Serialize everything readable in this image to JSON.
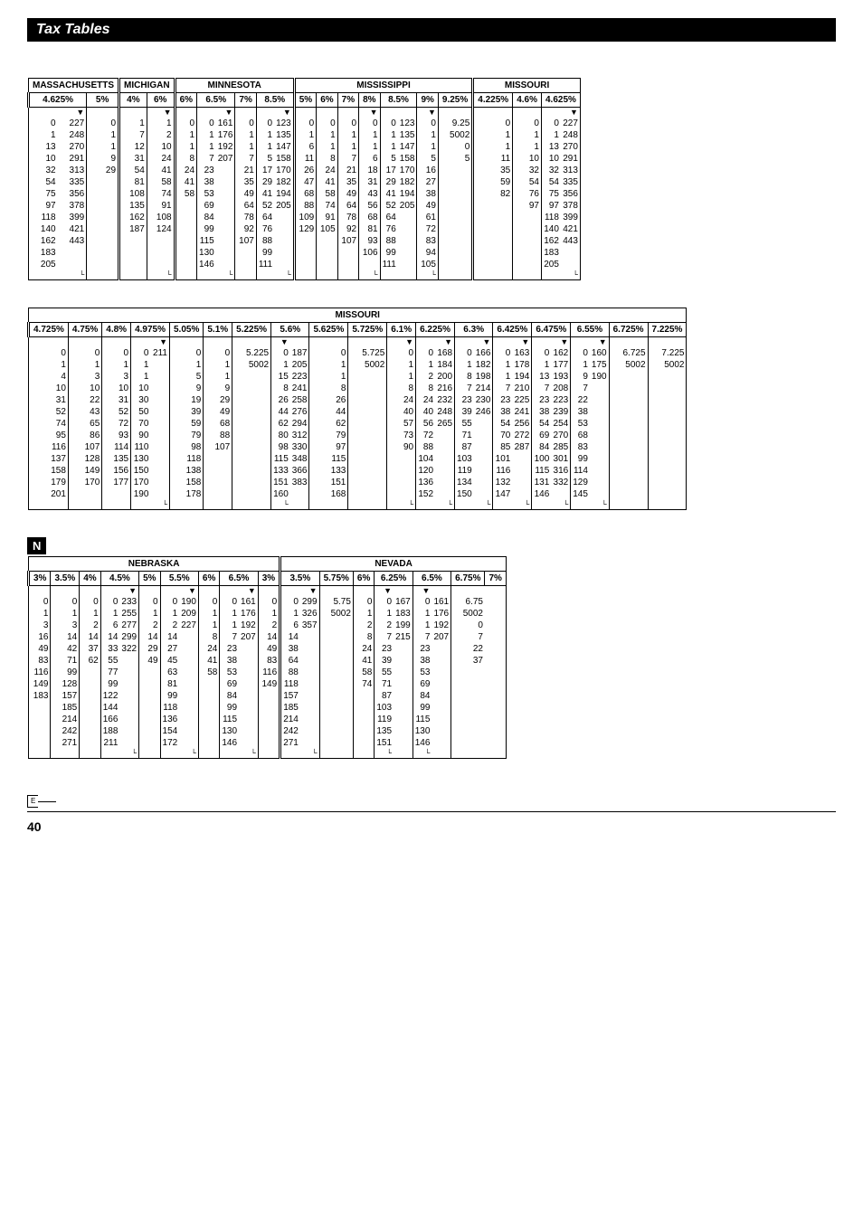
{
  "page_title": "Tax Tables",
  "page_number": "40",
  "e_label": "E",
  "n_label": "N",
  "table1": {
    "states": [
      "MASSACHUSETTS",
      "MICHIGAN",
      "MINNESOTA",
      "MISSISSIPPI",
      "MISSOURI"
    ],
    "state_spans": [
      3,
      2,
      6,
      8,
      4
    ],
    "rates": [
      "4.625%",
      "5%",
      "4%",
      "6%",
      "6%",
      "6.5%",
      "7%",
      "8.5%",
      "5%",
      "6%",
      "7%",
      "8%",
      "8.5%",
      "9%",
      "9.25%",
      "4.225%",
      "4.6%",
      "4.625%"
    ],
    "rate_spans": [
      2,
      1,
      1,
      1,
      1,
      2,
      1,
      2,
      1,
      1,
      1,
      1,
      2,
      1,
      1,
      1,
      1,
      2
    ],
    "cols": 23,
    "arrow_cols": [
      1,
      4,
      7,
      10,
      14,
      17,
      22
    ],
    "rows": [
      [
        "0",
        "227",
        "0",
        "1",
        "1",
        "0",
        "0",
        "161",
        "0",
        "0",
        "123",
        "0",
        "0",
        "0",
        "0",
        "0",
        "123",
        "0",
        "9.25",
        "0",
        "0",
        "0",
        "227"
      ],
      [
        "1",
        "248",
        "1",
        "7",
        "2",
        "1",
        "1",
        "176",
        "1",
        "1",
        "135",
        "1",
        "1",
        "1",
        "1",
        "1",
        "135",
        "1",
        "5002",
        "1",
        "1",
        "1",
        "248"
      ],
      [
        "13",
        "270",
        "1",
        "12",
        "10",
        "1",
        "1",
        "192",
        "1",
        "1",
        "147",
        "6",
        "1",
        "1",
        "1",
        "1",
        "147",
        "1",
        "0",
        "1",
        "1",
        "13",
        "270"
      ],
      [
        "10",
        "291",
        "9",
        "31",
        "24",
        "8",
        "7",
        "207",
        "7",
        "5",
        "158",
        "11",
        "8",
        "7",
        "6",
        "5",
        "158",
        "5",
        "5",
        "11",
        "10",
        "10",
        "291"
      ],
      [
        "32",
        "313",
        "29",
        "54",
        "41",
        "24",
        "23",
        "",
        "21",
        "17",
        "170",
        "26",
        "24",
        "21",
        "18",
        "17",
        "170",
        "16",
        "",
        "35",
        "32",
        "32",
        "313"
      ],
      [
        "54",
        "335",
        "",
        "81",
        "58",
        "41",
        "38",
        "",
        "35",
        "29",
        "182",
        "47",
        "41",
        "35",
        "31",
        "29",
        "182",
        "27",
        "",
        "59",
        "54",
        "54",
        "335"
      ],
      [
        "75",
        "356",
        "",
        "108",
        "74",
        "58",
        "53",
        "",
        "49",
        "41",
        "194",
        "68",
        "58",
        "49",
        "43",
        "41",
        "194",
        "38",
        "",
        "82",
        "76",
        "75",
        "356"
      ],
      [
        "97",
        "378",
        "",
        "135",
        "91",
        "",
        "69",
        "",
        "64",
        "52",
        "205",
        "88",
        "74",
        "64",
        "56",
        "52",
        "205",
        "49",
        "",
        "",
        "97",
        "97",
        "378"
      ],
      [
        "118",
        "399",
        "",
        "162",
        "108",
        "",
        "84",
        "",
        "78",
        "64",
        "",
        "109",
        "91",
        "78",
        "68",
        "64",
        "",
        "61",
        "",
        "",
        "",
        "118",
        "399"
      ],
      [
        "140",
        "421",
        "",
        "187",
        "124",
        "",
        "99",
        "",
        "92",
        "76",
        "",
        "129",
        "105",
        "92",
        "81",
        "76",
        "",
        "72",
        "",
        "",
        "",
        "140",
        "421"
      ],
      [
        "162",
        "443",
        "",
        "",
        "",
        "",
        "115",
        "",
        "107",
        "88",
        "",
        "",
        "",
        "107",
        "93",
        "88",
        "",
        "83",
        "",
        "",
        "",
        "162",
        "443"
      ],
      [
        "183",
        "",
        "",
        "",
        "",
        "",
        "130",
        "",
        "",
        "99",
        "",
        "",
        "",
        "",
        "106",
        "99",
        "",
        "94",
        "",
        "",
        "",
        "183",
        ""
      ],
      [
        "205",
        "",
        "",
        "",
        "",
        "",
        "146",
        "",
        "",
        "111",
        "",
        "",
        "",
        "",
        "",
        "111",
        "",
        "105",
        "",
        "",
        "",
        "205",
        ""
      ]
    ]
  },
  "table2": {
    "states": [
      "MISSOURI"
    ],
    "state_spans": [
      27
    ],
    "rates": [
      "4.725%",
      "4.75%",
      "4.8%",
      "4.975%",
      "5.05%",
      "5.1%",
      "5.225%",
      "5.6%",
      "5.625%",
      "5.725%",
      "6.1%",
      "6.225%",
      "6.3%",
      "6.425%",
      "6.475%",
      "6.55%",
      "6.725%",
      "7.225%"
    ],
    "rate_spans": [
      1,
      1,
      1,
      2,
      1,
      1,
      1,
      2,
      1,
      1,
      1,
      2,
      2,
      2,
      2,
      2,
      1,
      1
    ],
    "cols": 25,
    "arrow_cols": [
      4,
      8,
      12,
      14,
      16,
      18,
      20,
      22
    ],
    "rows": [
      [
        "0",
        "0",
        "0",
        "0",
        "211",
        "0",
        "0",
        "5.225",
        "0",
        "187",
        "0",
        "5.725",
        "0",
        "0",
        "168",
        "0",
        "166",
        "0",
        "163",
        "0",
        "162",
        "0",
        "160",
        "6.725",
        "7.225"
      ],
      [
        "1",
        "1",
        "1",
        "1",
        "",
        "1",
        "1",
        "5002",
        "1",
        "205",
        "1",
        "5002",
        "1",
        "1",
        "184",
        "1",
        "182",
        "1",
        "178",
        "1",
        "177",
        "1",
        "175",
        "5002",
        "5002"
      ],
      [
        "4",
        "3",
        "3",
        "1",
        "",
        "5",
        "1",
        "",
        "15",
        "223",
        "1",
        "",
        "1",
        "2",
        "200",
        "8",
        "198",
        "1",
        "194",
        "13",
        "193",
        "9",
        "190",
        "",
        ""
      ],
      [
        "10",
        "10",
        "10",
        "10",
        "",
        "9",
        "9",
        "",
        "8",
        "241",
        "8",
        "",
        "8",
        "8",
        "216",
        "7",
        "214",
        "7",
        "210",
        "7",
        "208",
        "7",
        "",
        "",
        ""
      ],
      [
        "31",
        "22",
        "31",
        "30",
        "",
        "19",
        "29",
        "",
        "26",
        "258",
        "26",
        "",
        "24",
        "24",
        "232",
        "23",
        "230",
        "23",
        "225",
        "23",
        "223",
        "22",
        "",
        "",
        ""
      ],
      [
        "52",
        "43",
        "52",
        "50",
        "",
        "39",
        "49",
        "",
        "44",
        "276",
        "44",
        "",
        "40",
        "40",
        "248",
        "39",
        "246",
        "38",
        "241",
        "38",
        "239",
        "38",
        "",
        "",
        ""
      ],
      [
        "74",
        "65",
        "72",
        "70",
        "",
        "59",
        "68",
        "",
        "62",
        "294",
        "62",
        "",
        "57",
        "56",
        "265",
        "55",
        "",
        "54",
        "256",
        "54",
        "254",
        "53",
        "",
        "",
        ""
      ],
      [
        "95",
        "86",
        "93",
        "90",
        "",
        "79",
        "88",
        "",
        "80",
        "312",
        "79",
        "",
        "73",
        "72",
        "",
        "71",
        "",
        "70",
        "272",
        "69",
        "270",
        "68",
        "",
        "",
        ""
      ],
      [
        "116",
        "107",
        "114",
        "110",
        "",
        "98",
        "107",
        "",
        "98",
        "330",
        "97",
        "",
        "90",
        "88",
        "",
        "87",
        "",
        "85",
        "287",
        "84",
        "285",
        "83",
        "",
        "",
        ""
      ],
      [
        "137",
        "128",
        "135",
        "130",
        "",
        "118",
        "",
        "",
        "115",
        "348",
        "115",
        "",
        "",
        "104",
        "",
        "103",
        "",
        "101",
        "",
        "100",
        "301",
        "99",
        "",
        "",
        ""
      ],
      [
        "158",
        "149",
        "156",
        "150",
        "",
        "138",
        "",
        "",
        "133",
        "366",
        "133",
        "",
        "",
        "120",
        "",
        "119",
        "",
        "116",
        "",
        "115",
        "316",
        "114",
        "",
        "",
        ""
      ],
      [
        "179",
        "170",
        "177",
        "170",
        "",
        "158",
        "",
        "",
        "151",
        "383",
        "151",
        "",
        "",
        "136",
        "",
        "134",
        "",
        "132",
        "",
        "131",
        "332",
        "129",
        "",
        "",
        ""
      ],
      [
        "201",
        "",
        "",
        "190",
        "",
        "178",
        "",
        "",
        "160",
        "",
        "168",
        "",
        "",
        "152",
        "",
        "150",
        "",
        "147",
        "",
        "146",
        "",
        "145",
        "",
        "",
        ""
      ]
    ]
  },
  "table3": {
    "states": [
      "NEBRASKA",
      "NEVADA"
    ],
    "state_spans": [
      12,
      12
    ],
    "rates": [
      "3%",
      "3.5%",
      "4%",
      "4.5%",
      "5%",
      "5.5%",
      "6%",
      "6.5%",
      "3%",
      "3.5%",
      "5.75%",
      "6%",
      "6.25%",
      "6.5%",
      "6.75%",
      "7%"
    ],
    "rate_spans": [
      1,
      1,
      1,
      2,
      1,
      2,
      1,
      2,
      1,
      2,
      1,
      1,
      2,
      2,
      1,
      1
    ],
    "cols": 21,
    "arrow_cols": [
      4,
      7,
      10,
      13,
      16,
      18
    ],
    "rows": [
      [
        "0",
        "0",
        "0",
        "0",
        "233",
        "0",
        "0",
        "190",
        "0",
        "0",
        "161",
        "0",
        "0",
        "299",
        "5.75",
        "0",
        "0",
        "167",
        "0",
        "161",
        "6.75",
        "0"
      ],
      [
        "1",
        "1",
        "1",
        "1",
        "255",
        "1",
        "1",
        "209",
        "1",
        "1",
        "176",
        "1",
        "1",
        "326",
        "5002",
        "1",
        "1",
        "183",
        "1",
        "176",
        "5002",
        "1"
      ],
      [
        "3",
        "3",
        "2",
        "6",
        "277",
        "2",
        "2",
        "227",
        "1",
        "1",
        "192",
        "2",
        "6",
        "357",
        "",
        "2",
        "2",
        "199",
        "1",
        "192",
        "0",
        "1"
      ],
      [
        "16",
        "14",
        "14",
        "14",
        "299",
        "14",
        "14",
        "",
        "8",
        "7",
        "207",
        "14",
        "14",
        "",
        "",
        "8",
        "7",
        "215",
        "7",
        "207",
        "7",
        "7"
      ],
      [
        "49",
        "42",
        "37",
        "33",
        "322",
        "29",
        "27",
        "",
        "24",
        "23",
        "",
        "49",
        "38",
        "",
        "",
        "24",
        "23",
        "",
        "23",
        "",
        "22",
        "21"
      ],
      [
        "83",
        "71",
        "62",
        "55",
        "",
        "49",
        "45",
        "",
        "41",
        "38",
        "",
        "83",
        "64",
        "",
        "",
        "41",
        "39",
        "",
        "38",
        "",
        "37",
        "35"
      ],
      [
        "116",
        "99",
        "",
        "77",
        "",
        "",
        "63",
        "",
        "58",
        "53",
        "",
        "116",
        "88",
        "",
        "",
        "58",
        "55",
        "",
        "53",
        "",
        "",
        "49"
      ],
      [
        "149",
        "128",
        "",
        "99",
        "",
        "",
        "81",
        "",
        "",
        "69",
        "",
        "149",
        "118",
        "",
        "",
        "74",
        "71",
        "",
        "69",
        "",
        "",
        "64"
      ],
      [
        "183",
        "157",
        "",
        "122",
        "",
        "",
        "99",
        "",
        "",
        "84",
        "",
        "",
        "157",
        "",
        "",
        "",
        "87",
        "",
        "84",
        "",
        "",
        "78"
      ],
      [
        "",
        "185",
        "",
        "144",
        "",
        "",
        "118",
        "",
        "",
        "99",
        "",
        "",
        "185",
        "",
        "",
        "",
        "103",
        "",
        "99",
        "",
        "",
        "92"
      ],
      [
        "",
        "214",
        "",
        "166",
        "",
        "",
        "136",
        "",
        "",
        "115",
        "",
        "",
        "214",
        "",
        "",
        "",
        "119",
        "",
        "115",
        "",
        "",
        "107"
      ],
      [
        "",
        "242",
        "",
        "188",
        "",
        "",
        "154",
        "",
        "",
        "130",
        "",
        "",
        "242",
        "",
        "",
        "",
        "135",
        "",
        "130",
        "",
        "",
        ""
      ],
      [
        "",
        "271",
        "",
        "211",
        "",
        "",
        "172",
        "",
        "",
        "146",
        "",
        "",
        "271",
        "",
        "",
        "",
        "151",
        "",
        "146",
        "",
        "",
        ""
      ]
    ]
  }
}
